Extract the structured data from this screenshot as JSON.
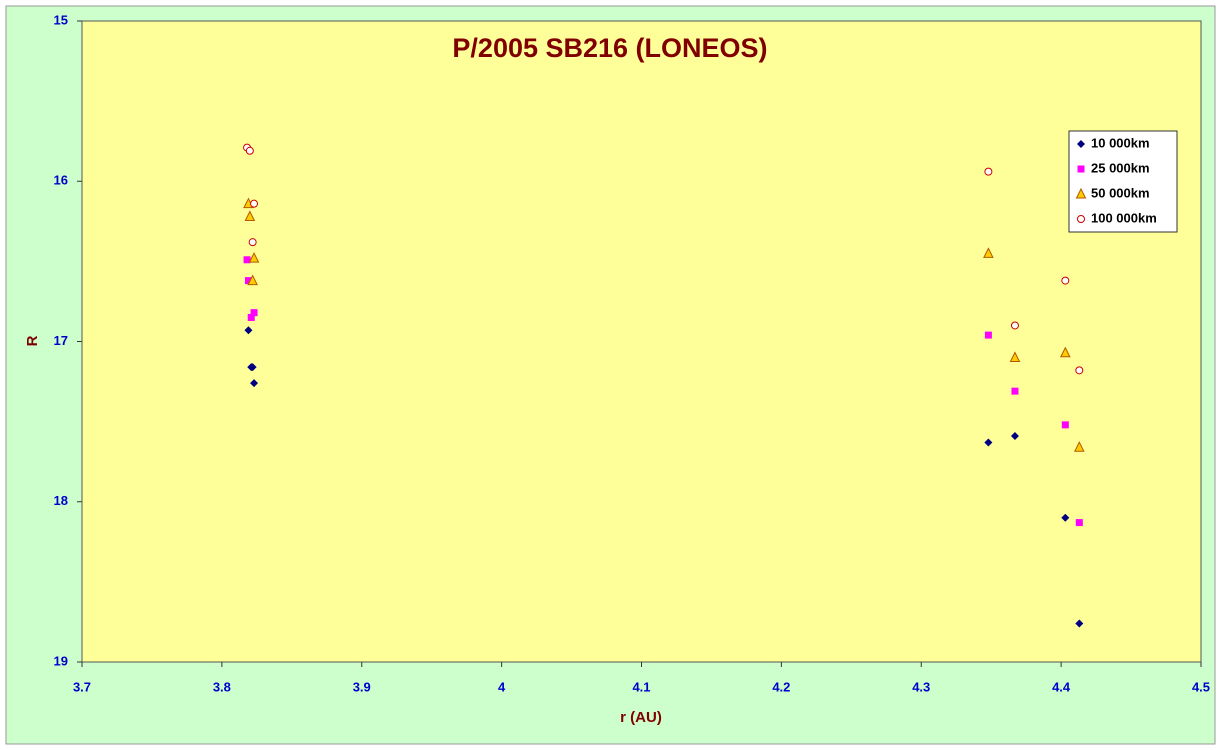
{
  "chart_data": {
    "type": "scatter",
    "title": "P/2005 SB216 (LONEOS)",
    "x_label": "r (AU)",
    "y_label": "R",
    "xlim": [
      3.7,
      4.5
    ],
    "xticks": [
      3.7,
      3.8,
      3.9,
      4,
      4.1,
      4.2,
      4.3,
      4.4,
      4.5
    ],
    "ylim": [
      15,
      19
    ],
    "yticks": [
      15,
      16,
      17,
      18,
      19
    ],
    "y_reversed": true,
    "legend": "upper right",
    "series": [
      {
        "name": "10 000km",
        "marker": "diamond",
        "color": "#000080",
        "x": [
          3.819,
          3.821,
          3.822,
          3.823,
          4.348,
          4.367,
          4.403,
          4.413
        ],
        "values": [
          16.93,
          17.16,
          17.16,
          17.26,
          17.63,
          17.59,
          18.1,
          18.76
        ]
      },
      {
        "name": "25 000km",
        "marker": "square",
        "color": "#ff00ff",
        "x": [
          3.818,
          3.819,
          3.821,
          3.823,
          4.348,
          4.367,
          4.403,
          4.413
        ],
        "values": [
          16.49,
          16.62,
          16.85,
          16.82,
          16.96,
          17.31,
          17.52,
          18.13
        ]
      },
      {
        "name": "50 000km",
        "marker": "triangle",
        "color": "#ffcc00",
        "x": [
          3.819,
          3.82,
          3.823,
          3.822,
          4.348,
          4.367,
          4.403,
          4.413
        ],
        "values": [
          16.14,
          16.22,
          16.48,
          16.62,
          16.45,
          17.1,
          17.07,
          17.66
        ]
      },
      {
        "name": "100 000km",
        "marker": "circle",
        "color": "#cc0000",
        "x": [
          3.818,
          3.82,
          3.823,
          3.822,
          4.348,
          4.367,
          4.403,
          4.413
        ],
        "values": [
          15.79,
          15.81,
          16.14,
          16.38,
          15.94,
          16.9,
          16.62,
          17.18
        ]
      }
    ]
  }
}
